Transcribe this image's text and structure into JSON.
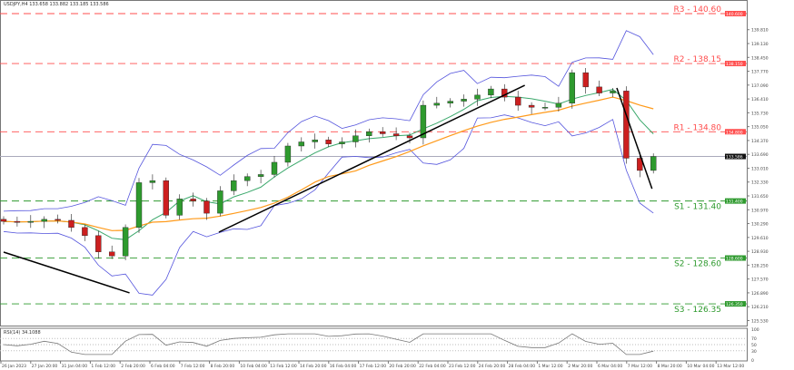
{
  "header": {
    "symbol": "USDJPY,H4",
    "ohlc": "133.658 133.882 133.185 133.586"
  },
  "rsi_label": "RSI(14) 34.1088",
  "colors": {
    "resistance": "#ff4d4d",
    "support": "#2e9a2e",
    "bollinger": "#5555dd",
    "ma_fast": "#3aa86b",
    "ma_slow": "#ff9a1a",
    "trendline": "#000000",
    "candle_up": "#2e9a2e",
    "candle_down": "#cc1f1f"
  },
  "chart_data": {
    "type": "candlestick",
    "symbol": "USDJPY",
    "timeframe": "H4",
    "ylim": [
      125.17,
      140.9
    ],
    "y_ticks": [
      "139.810",
      "139.130",
      "138.450",
      "137.770",
      "137.090",
      "136.410",
      "135.730",
      "135.050",
      "134.370",
      "133.690",
      "133.010",
      "132.330",
      "131.650",
      "130.970",
      "130.290",
      "129.610",
      "128.930",
      "128.250",
      "127.570",
      "126.890",
      "126.210",
      "125.530"
    ],
    "x_ticks": [
      "26 Jan 2023",
      "27 Jan 20:00",
      "31 Jan 04:00",
      "1 Feb 12:00",
      "2 Feb 20:00",
      "6 Feb 04:00",
      "7 Feb 12:00",
      "8 Feb 20:00",
      "10 Feb 04:00",
      "13 Feb 12:00",
      "14 Feb 20:00",
      "16 Feb 04:00",
      "17 Feb 12:00",
      "20 Feb 20:00",
      "22 Feb 04:00",
      "23 Feb 12:00",
      "24 Feb 20:00",
      "28 Feb 04:00",
      "1 Mar 12:00",
      "2 Mar 20:00",
      "6 Mar 04:00",
      "7 Mar 12:00",
      "8 Mar 20:00",
      "10 Mar 04:00",
      "13 Mar 12:00"
    ],
    "closes": [
      130.4,
      130.35,
      130.4,
      130.5,
      130.45,
      130.1,
      129.7,
      128.9,
      128.7,
      130.1,
      132.3,
      132.4,
      130.7,
      131.5,
      131.4,
      130.8,
      131.9,
      132.4,
      132.6,
      132.7,
      133.3,
      134.1,
      134.3,
      134.4,
      134.2,
      134.3,
      134.6,
      134.8,
      134.7,
      134.6,
      134.5,
      136.1,
      136.2,
      136.3,
      136.4,
      136.6,
      136.9,
      136.5,
      136.1,
      136.0,
      136.0,
      136.2,
      137.7,
      137.0,
      136.7,
      136.8,
      133.5,
      132.9,
      133.586
    ],
    "current_price": "133.586",
    "levels": [
      {
        "label": "R3 - 140.60",
        "value": 140.6,
        "kind": "resistance"
      },
      {
        "label": "R2 - 138.15",
        "value": 138.15,
        "kind": "resistance"
      },
      {
        "label": "R1 - 134.80",
        "value": 134.8,
        "kind": "resistance"
      },
      {
        "label": "S1 - 131.40",
        "value": 131.4,
        "kind": "support"
      },
      {
        "label": "S2 - 128.60",
        "value": 128.6,
        "kind": "support"
      },
      {
        "label": "S3 - 126.35",
        "value": 126.35,
        "kind": "support"
      }
    ],
    "trendlines": [
      {
        "from": [
          0,
          128.89
        ],
        "to": [
          9.3,
          126.89
        ]
      },
      {
        "from": [
          15.9,
          129.87
        ],
        "to": [
          38.5,
          137.08
        ]
      },
      {
        "from": [
          45.3,
          136.95
        ],
        "to": [
          47.9,
          132.0
        ]
      }
    ],
    "rsi": {
      "levels": [
        "100",
        "70",
        "50",
        "30",
        "0"
      ]
    }
  }
}
